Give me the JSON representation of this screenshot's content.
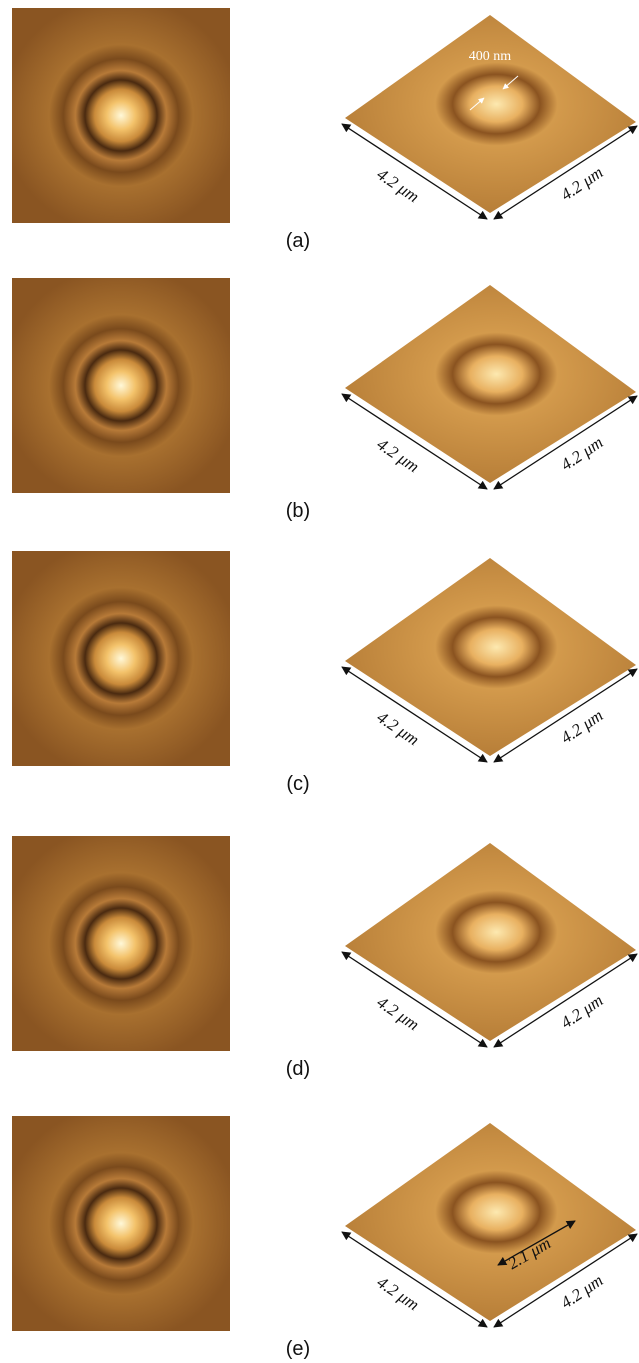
{
  "panels": [
    {
      "label": "(a)",
      "dim_left": "4.2 μm",
      "dim_right": "4.2 μm",
      "annotation": "400 nm"
    },
    {
      "label": "(b)",
      "dim_left": "4.2 μm",
      "dim_right": "4.2 μm"
    },
    {
      "label": "(c)",
      "dim_left": "4.2 μm",
      "dim_right": "4.2 μm"
    },
    {
      "label": "(d)",
      "dim_left": "4.2 μm",
      "dim_right": "4.2 μm"
    },
    {
      "label": "(e)",
      "dim_left": "4.2 μm",
      "dim_right": "4.2 μm",
      "annotation": "2.1 μm"
    }
  ]
}
